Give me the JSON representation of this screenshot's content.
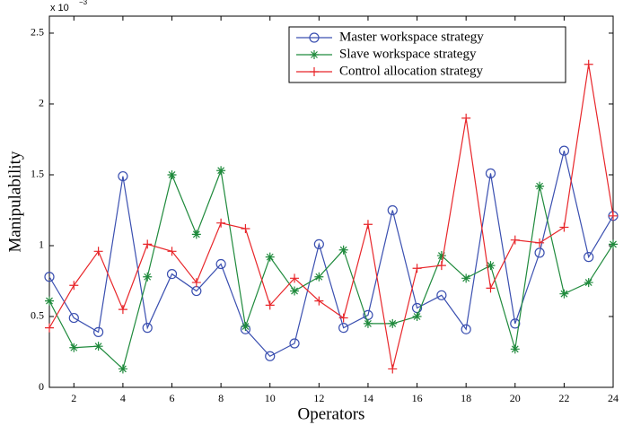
{
  "chart_data": {
    "type": "line",
    "x_label": "Operators",
    "y_label": "Manipulability",
    "y_multiplier": {
      "base": "x 10",
      "exponent": "−3"
    },
    "x": [
      1,
      2,
      3,
      4,
      5,
      6,
      7,
      8,
      9,
      10,
      11,
      12,
      13,
      14,
      15,
      16,
      17,
      18,
      19,
      20,
      21,
      22,
      23,
      24
    ],
    "xlim": [
      1,
      24
    ],
    "xticks": [
      2,
      4,
      6,
      8,
      10,
      12,
      14,
      16,
      18,
      20,
      22,
      24
    ],
    "ylim": [
      0,
      2.62
    ],
    "yticks": [
      0,
      0.5,
      1,
      1.5,
      2,
      2.5
    ],
    "legend_position": "upper right",
    "series": [
      {
        "name": "Master workspace strategy",
        "color": "#3a4fb0",
        "marker": "circle",
        "values": [
          0.78,
          0.49,
          0.39,
          1.49,
          0.42,
          0.8,
          0.68,
          0.87,
          0.41,
          0.22,
          0.31,
          1.01,
          0.42,
          0.51,
          1.25,
          0.56,
          0.65,
          0.41,
          1.51,
          0.45,
          0.95,
          1.67,
          0.92,
          1.21
        ]
      },
      {
        "name": "Slave workspace strategy",
        "color": "#1f8a3c",
        "marker": "asterisk",
        "values": [
          0.61,
          0.28,
          0.29,
          0.13,
          0.78,
          1.5,
          1.08,
          1.53,
          0.43,
          0.92,
          0.68,
          0.78,
          0.97,
          0.45,
          0.45,
          0.5,
          0.93,
          0.77,
          0.86,
          0.27,
          1.42,
          0.66,
          0.74,
          1.01
        ]
      },
      {
        "name": "Control allocation strategy",
        "color": "#e8262a",
        "marker": "plus",
        "values": [
          0.42,
          0.72,
          0.96,
          0.55,
          1.01,
          0.96,
          0.74,
          1.16,
          1.12,
          0.58,
          0.77,
          0.61,
          0.49,
          1.15,
          0.13,
          0.84,
          0.86,
          1.9,
          0.7,
          1.04,
          1.02,
          1.13,
          2.28,
          1.21
        ]
      }
    ]
  }
}
